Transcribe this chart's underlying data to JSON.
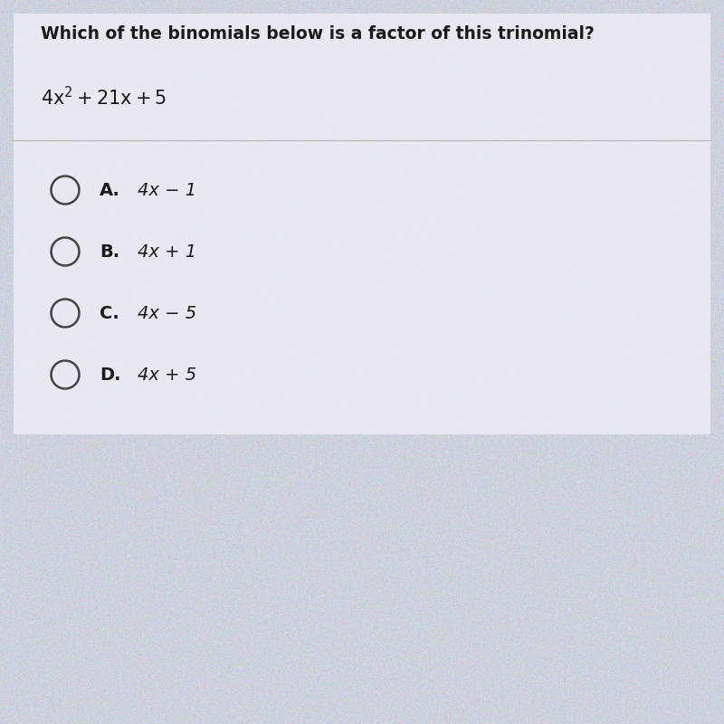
{
  "question": "Which of the binomials below is a factor of this trinomial?",
  "bg_color": "#cdd1dc",
  "content_bg": "#e8eaf0",
  "text_color": "#1a1a1a",
  "line_color": "#bbbbbb",
  "circle_edge_color": "#444444",
  "question_fontsize": 13.5,
  "trinomial_fontsize": 15,
  "choice_label_fontsize": 14,
  "choice_expr_fontsize": 14,
  "choices": [
    {
      "label": "A.",
      "expr": "4x − 1"
    },
    {
      "label": "B.",
      "expr": "4x + 1"
    },
    {
      "label": "C.",
      "expr": "4x − 5"
    },
    {
      "label": "D.",
      "expr": "4x + 5"
    }
  ]
}
